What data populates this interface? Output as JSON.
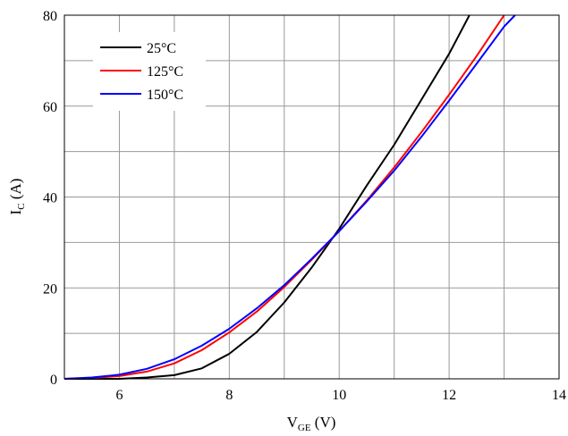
{
  "chart_data": {
    "type": "line",
    "title": "",
    "xlabel": {
      "main": "V",
      "sub": "GE",
      "unit": " (V)"
    },
    "ylabel": {
      "main": "I",
      "sub": "C",
      "unit": " (A)"
    },
    "xlim": [
      5,
      14
    ],
    "ylim": [
      0,
      80
    ],
    "x_ticks": [
      6,
      8,
      10,
      12,
      14
    ],
    "y_ticks": [
      0,
      20,
      40,
      60,
      80
    ],
    "grid": true,
    "legend_position": "top-left",
    "series": [
      {
        "name": "25°C",
        "color": "#000000",
        "x": [
          5,
          5.5,
          6,
          6.5,
          7,
          7.5,
          8,
          8.5,
          9,
          9.5,
          10,
          10.5,
          11,
          11.5,
          12,
          12.37
        ],
        "y": [
          0,
          0,
          0,
          0.3,
          0.8,
          2.3,
          5.5,
          10.3,
          16.8,
          24.5,
          33,
          42.5,
          51.5,
          61.5,
          71.5,
          80
        ]
      },
      {
        "name": "125°C",
        "color": "#ff0000",
        "x": [
          5,
          5.5,
          6,
          6.5,
          7,
          7.5,
          8,
          8.5,
          9,
          9.5,
          10,
          10.5,
          11,
          11.5,
          12,
          12.5,
          13
        ],
        "y": [
          0,
          0.2,
          0.6,
          1.6,
          3.4,
          6.3,
          10.2,
          14.8,
          20.2,
          26.2,
          32.5,
          39.2,
          46.5,
          54.3,
          62.5,
          71,
          80
        ]
      },
      {
        "name": "150°C",
        "color": "#0000ff",
        "x": [
          5,
          5.5,
          6,
          6.5,
          7,
          7.5,
          8,
          8.5,
          9,
          9.5,
          10,
          10.5,
          11,
          11.5,
          12,
          12.5,
          13,
          13.2
        ],
        "y": [
          0,
          0.3,
          0.9,
          2.2,
          4.3,
          7.3,
          11,
          15.5,
          20.6,
          26.4,
          32.5,
          39,
          45.8,
          53.3,
          61.2,
          69.3,
          77.5,
          80
        ]
      }
    ]
  }
}
